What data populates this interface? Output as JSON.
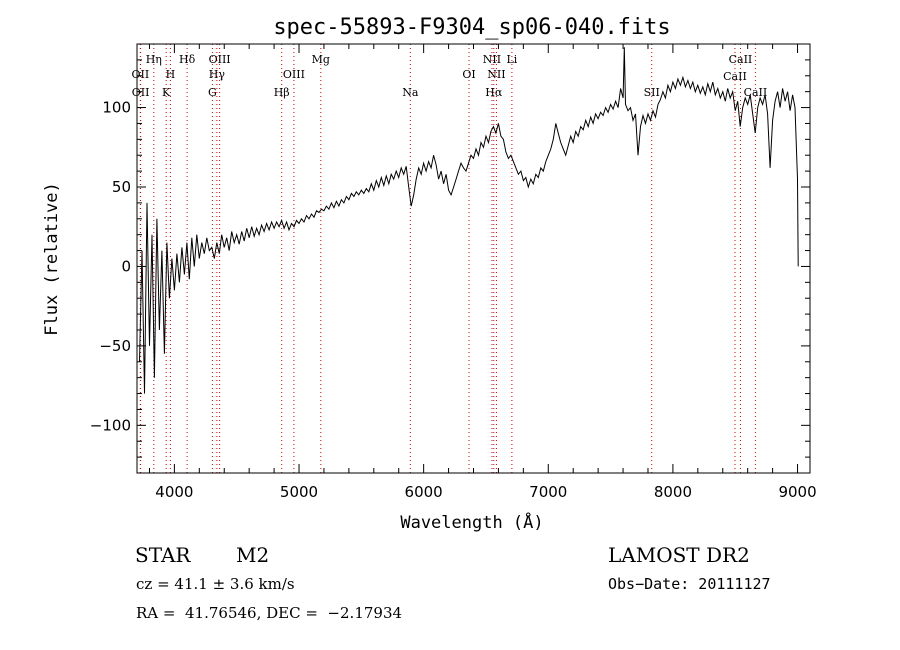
{
  "chart_data": {
    "type": "line",
    "title": "spec-55893-F9304_sp06-040.fits",
    "xlabel": "Wavelength (Å)",
    "ylabel": "Flux (relative)",
    "xlim": [
      3700,
      9100
    ],
    "ylim": [
      -130,
      140
    ],
    "xticks": [
      4000,
      5000,
      6000,
      7000,
      8000,
      9000
    ],
    "yticks": [
      -100,
      -50,
      0,
      50,
      100
    ],
    "ytick_labels": [
      "−100",
      "−50",
      "0",
      "50",
      "100"
    ],
    "grid": false,
    "series_color": "#000000",
    "line_marker_color": "#cc0000",
    "spectrum": [
      [
        3720,
        -60
      ],
      [
        3740,
        10
      ],
      [
        3760,
        -80
      ],
      [
        3780,
        40
      ],
      [
        3800,
        -50
      ],
      [
        3820,
        20
      ],
      [
        3840,
        -70
      ],
      [
        3860,
        30
      ],
      [
        3880,
        -40
      ],
      [
        3900,
        10
      ],
      [
        3920,
        -55
      ],
      [
        3940,
        15
      ],
      [
        3960,
        -20
      ],
      [
        3980,
        5
      ],
      [
        4000,
        -15
      ],
      [
        4020,
        8
      ],
      [
        4040,
        -10
      ],
      [
        4060,
        12
      ],
      [
        4080,
        -5
      ],
      [
        4100,
        15
      ],
      [
        4120,
        -8
      ],
      [
        4140,
        18
      ],
      [
        4160,
        0
      ],
      [
        4180,
        20
      ],
      [
        4200,
        5
      ],
      [
        4220,
        15
      ],
      [
        4240,
        8
      ],
      [
        4260,
        18
      ],
      [
        4280,
        10
      ],
      [
        4300,
        12
      ],
      [
        4320,
        5
      ],
      [
        4340,
        15
      ],
      [
        4360,
        8
      ],
      [
        4380,
        20
      ],
      [
        4400,
        12
      ],
      [
        4420,
        18
      ],
      [
        4440,
        10
      ],
      [
        4460,
        22
      ],
      [
        4480,
        15
      ],
      [
        4500,
        20
      ],
      [
        4520,
        14
      ],
      [
        4540,
        22
      ],
      [
        4560,
        16
      ],
      [
        4580,
        24
      ],
      [
        4600,
        18
      ],
      [
        4620,
        25
      ],
      [
        4640,
        19
      ],
      [
        4660,
        24
      ],
      [
        4680,
        20
      ],
      [
        4700,
        26
      ],
      [
        4720,
        22
      ],
      [
        4740,
        27
      ],
      [
        4760,
        23
      ],
      [
        4780,
        28
      ],
      [
        4800,
        24
      ],
      [
        4820,
        28
      ],
      [
        4840,
        25
      ],
      [
        4860,
        29
      ],
      [
        4880,
        24
      ],
      [
        4900,
        28
      ],
      [
        4920,
        23
      ],
      [
        4940,
        27
      ],
      [
        4960,
        25
      ],
      [
        4980,
        29
      ],
      [
        5000,
        27
      ],
      [
        5020,
        30
      ],
      [
        5040,
        28
      ],
      [
        5060,
        32
      ],
      [
        5080,
        30
      ],
      [
        5100,
        33
      ],
      [
        5120,
        31
      ],
      [
        5140,
        35
      ],
      [
        5160,
        34
      ],
      [
        5180,
        36
      ],
      [
        5200,
        35
      ],
      [
        5220,
        38
      ],
      [
        5240,
        36
      ],
      [
        5260,
        40
      ],
      [
        5280,
        37
      ],
      [
        5300,
        41
      ],
      [
        5320,
        38
      ],
      [
        5340,
        42
      ],
      [
        5360,
        40
      ],
      [
        5380,
        44
      ],
      [
        5400,
        42
      ],
      [
        5420,
        46
      ],
      [
        5440,
        44
      ],
      [
        5460,
        47
      ],
      [
        5480,
        45
      ],
      [
        5500,
        48
      ],
      [
        5520,
        46
      ],
      [
        5540,
        49
      ],
      [
        5560,
        47
      ],
      [
        5580,
        52
      ],
      [
        5600,
        48
      ],
      [
        5620,
        54
      ],
      [
        5640,
        50
      ],
      [
        5660,
        56
      ],
      [
        5680,
        51
      ],
      [
        5700,
        57
      ],
      [
        5720,
        52
      ],
      [
        5740,
        58
      ],
      [
        5760,
        55
      ],
      [
        5780,
        60
      ],
      [
        5800,
        56
      ],
      [
        5820,
        62
      ],
      [
        5840,
        58
      ],
      [
        5860,
        63
      ],
      [
        5880,
        50
      ],
      [
        5900,
        38
      ],
      [
        5920,
        45
      ],
      [
        5940,
        55
      ],
      [
        5960,
        62
      ],
      [
        5980,
        58
      ],
      [
        6000,
        65
      ],
      [
        6020,
        60
      ],
      [
        6040,
        66
      ],
      [
        6060,
        62
      ],
      [
        6080,
        70
      ],
      [
        6100,
        64
      ],
      [
        6120,
        55
      ],
      [
        6140,
        60
      ],
      [
        6160,
        52
      ],
      [
        6180,
        58
      ],
      [
        6200,
        48
      ],
      [
        6220,
        45
      ],
      [
        6240,
        50
      ],
      [
        6260,
        55
      ],
      [
        6280,
        60
      ],
      [
        6300,
        65
      ],
      [
        6320,
        62
      ],
      [
        6340,
        60
      ],
      [
        6360,
        65
      ],
      [
        6380,
        70
      ],
      [
        6400,
        68
      ],
      [
        6420,
        74
      ],
      [
        6440,
        70
      ],
      [
        6460,
        78
      ],
      [
        6480,
        75
      ],
      [
        6500,
        82
      ],
      [
        6520,
        78
      ],
      [
        6540,
        85
      ],
      [
        6560,
        88
      ],
      [
        6580,
        84
      ],
      [
        6600,
        90
      ],
      [
        6620,
        82
      ],
      [
        6640,
        80
      ],
      [
        6660,
        72
      ],
      [
        6680,
        68
      ],
      [
        6700,
        70
      ],
      [
        6720,
        66
      ],
      [
        6740,
        62
      ],
      [
        6760,
        58
      ],
      [
        6780,
        60
      ],
      [
        6800,
        54
      ],
      [
        6820,
        56
      ],
      [
        6840,
        50
      ],
      [
        6860,
        55
      ],
      [
        6880,
        52
      ],
      [
        6900,
        58
      ],
      [
        6920,
        56
      ],
      [
        6940,
        62
      ],
      [
        6960,
        60
      ],
      [
        6980,
        66
      ],
      [
        7000,
        70
      ],
      [
        7020,
        74
      ],
      [
        7040,
        80
      ],
      [
        7060,
        90
      ],
      [
        7080,
        84
      ],
      [
        7100,
        78
      ],
      [
        7120,
        74
      ],
      [
        7140,
        70
      ],
      [
        7160,
        76
      ],
      [
        7180,
        82
      ],
      [
        7200,
        78
      ],
      [
        7220,
        85
      ],
      [
        7240,
        82
      ],
      [
        7260,
        88
      ],
      [
        7280,
        86
      ],
      [
        7300,
        92
      ],
      [
        7320,
        88
      ],
      [
        7340,
        94
      ],
      [
        7360,
        90
      ],
      [
        7380,
        96
      ],
      [
        7400,
        93
      ],
      [
        7420,
        97
      ],
      [
        7440,
        95
      ],
      [
        7460,
        100
      ],
      [
        7480,
        97
      ],
      [
        7500,
        102
      ],
      [
        7520,
        99
      ],
      [
        7540,
        104
      ],
      [
        7560,
        100
      ],
      [
        7580,
        112
      ],
      [
        7600,
        106
      ],
      [
        7610,
        138
      ],
      [
        7620,
        102
      ],
      [
        7640,
        98
      ],
      [
        7660,
        100
      ],
      [
        7680,
        92
      ],
      [
        7700,
        96
      ],
      [
        7720,
        70
      ],
      [
        7740,
        88
      ],
      [
        7760,
        95
      ],
      [
        7780,
        90
      ],
      [
        7800,
        96
      ],
      [
        7820,
        92
      ],
      [
        7840,
        98
      ],
      [
        7860,
        94
      ],
      [
        7880,
        102
      ],
      [
        7900,
        105
      ],
      [
        7920,
        110
      ],
      [
        7940,
        106
      ],
      [
        7960,
        114
      ],
      [
        7980,
        110
      ],
      [
        8000,
        116
      ],
      [
        8020,
        112
      ],
      [
        8040,
        118
      ],
      [
        8060,
        114
      ],
      [
        8080,
        119
      ],
      [
        8100,
        113
      ],
      [
        8120,
        117
      ],
      [
        8140,
        112
      ],
      [
        8160,
        116
      ],
      [
        8180,
        110
      ],
      [
        8200,
        114
      ],
      [
        8220,
        109
      ],
      [
        8240,
        113
      ],
      [
        8260,
        108
      ],
      [
        8280,
        115
      ],
      [
        8300,
        110
      ],
      [
        8320,
        116
      ],
      [
        8340,
        108
      ],
      [
        8360,
        112
      ],
      [
        8380,
        106
      ],
      [
        8400,
        110
      ],
      [
        8420,
        104
      ],
      [
        8440,
        112
      ],
      [
        8460,
        106
      ],
      [
        8480,
        110
      ],
      [
        8500,
        98
      ],
      [
        8520,
        104
      ],
      [
        8540,
        88
      ],
      [
        8560,
        100
      ],
      [
        8580,
        106
      ],
      [
        8600,
        102
      ],
      [
        8620,
        108
      ],
      [
        8640,
        96
      ],
      [
        8660,
        84
      ],
      [
        8680,
        100
      ],
      [
        8700,
        106
      ],
      [
        8720,
        102
      ],
      [
        8740,
        108
      ],
      [
        8760,
        96
      ],
      [
        8780,
        62
      ],
      [
        8800,
        92
      ],
      [
        8820,
        104
      ],
      [
        8840,
        110
      ],
      [
        8860,
        100
      ],
      [
        8880,
        112
      ],
      [
        8900,
        104
      ],
      [
        8920,
        110
      ],
      [
        8940,
        98
      ],
      [
        8960,
        108
      ],
      [
        8980,
        100
      ],
      [
        9000,
        55
      ],
      [
        9005,
        0
      ]
    ],
    "line_markers": [
      {
        "label": "OII",
        "wavelength": 3727,
        "row": 3
      },
      {
        "label": "OII",
        "wavelength": 3729,
        "row": 4
      },
      {
        "label": "Hη",
        "wavelength": 3835,
        "row": 1
      },
      {
        "label": "H",
        "wavelength": 3968,
        "row": 3
      },
      {
        "label": "K",
        "wavelength": 3934,
        "row": 4
      },
      {
        "label": "Hδ",
        "wavelength": 4102,
        "row": 1
      },
      {
        "label": "OIII",
        "wavelength": 4363,
        "row": 1
      },
      {
        "label": "Hγ",
        "wavelength": 4341,
        "row": 3
      },
      {
        "label": "G",
        "wavelength": 4305,
        "row": 4
      },
      {
        "label": "OIII",
        "wavelength": 4959,
        "row": 3
      },
      {
        "label": "Hβ",
        "wavelength": 4861,
        "row": 4
      },
      {
        "label": "Mg",
        "wavelength": 5175,
        "row": 1
      },
      {
        "label": "Na",
        "wavelength": 5893,
        "row": 4
      },
      {
        "label": "OI",
        "wavelength": 6364,
        "row": 3
      },
      {
        "label": "NII",
        "wavelength": 6548,
        "row": 1
      },
      {
        "label": "NII",
        "wavelength": 6584,
        "row": 3
      },
      {
        "label": "Hα",
        "wavelength": 6563,
        "row": 4
      },
      {
        "label": "Li",
        "wavelength": 6708,
        "row": 1
      },
      {
        "label": "SII",
        "wavelength": 6731,
        "row": 4,
        "shown_at": 7830
      },
      {
        "label": "CaII",
        "wavelength": 8542,
        "row": 1
      },
      {
        "label": "CaII",
        "wavelength": 8498,
        "row": 2
      },
      {
        "label": "CaII",
        "wavelength": 8662,
        "row": 4
      }
    ]
  },
  "info": {
    "object_class": "STAR",
    "subclass": "M2",
    "survey": "LAMOST DR2",
    "redshift": "cz = 41.1 ± 3.6 km/s",
    "obs_date": "Obs−Date: 20111127",
    "coords": "RA =  41.76546, DEC =  −2.17934"
  }
}
